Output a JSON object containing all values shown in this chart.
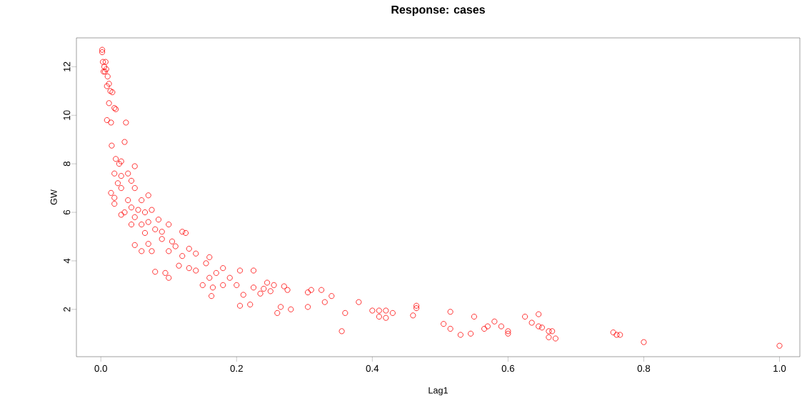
{
  "chart_data": {
    "type": "scatter",
    "title": "Response: cases",
    "xlabel": "Lag1",
    "ylabel": "GW",
    "color": "#ff0000",
    "marker": "circle",
    "xlim": [
      -0.036,
      1.03
    ],
    "ylim": [
      0.05,
      13.19
    ],
    "xticks": [
      {
        "value": 0,
        "label": "0.0"
      },
      {
        "value": 0.2,
        "label": "0.2"
      },
      {
        "value": 0.4,
        "label": "0.4"
      },
      {
        "value": 0.6,
        "label": "0.6"
      },
      {
        "value": 0.8,
        "label": "0.8"
      },
      {
        "value": 1,
        "label": "1.0"
      }
    ],
    "yticks": [
      2,
      4,
      6,
      8,
      10,
      12
    ],
    "x": [
      0.002,
      0.002,
      0.003,
      0.007,
      0.005,
      0.008,
      0.006,
      0.004,
      0.01,
      0.012,
      0.009,
      0.014,
      0.017,
      0.012,
      0.02,
      0.022,
      0.009,
      0.015,
      0.037,
      0.016,
      0.035,
      0.022,
      0.03,
      0.027,
      0.05,
      0.02,
      0.04,
      0.03,
      0.025,
      0.045,
      0.05,
      0.03,
      0.015,
      0.02,
      0.07,
      0.02,
      0.04,
      0.06,
      0.045,
      0.035,
      0.055,
      0.065,
      0.03,
      0.05,
      0.075,
      0.085,
      0.06,
      0.07,
      0.045,
      0.1,
      0.08,
      0.09,
      0.065,
      0.12,
      0.125,
      0.05,
      0.07,
      0.09,
      0.105,
      0.11,
      0.075,
      0.06,
      0.1,
      0.13,
      0.12,
      0.14,
      0.16,
      0.155,
      0.08,
      0.095,
      0.1,
      0.13,
      0.14,
      0.115,
      0.17,
      0.18,
      0.19,
      0.205,
      0.225,
      0.16,
      0.15,
      0.165,
      0.18,
      0.2,
      0.21,
      0.225,
      0.24,
      0.245,
      0.255,
      0.27,
      0.275,
      0.25,
      0.235,
      0.22,
      0.205,
      0.163,
      0.26,
      0.28,
      0.265,
      0.305,
      0.31,
      0.325,
      0.34,
      0.33,
      0.305,
      0.36,
      0.355,
      0.38,
      0.4,
      0.41,
      0.42,
      0.41,
      0.42,
      0.43,
      0.46,
      0.465,
      0.465,
      0.505,
      0.515,
      0.515,
      0.53,
      0.545,
      0.55,
      0.565,
      0.57,
      0.58,
      0.59,
      0.6,
      0.6,
      0.625,
      0.635,
      0.645,
      0.645,
      0.65,
      0.66,
      0.665,
      0.66,
      0.67,
      0.755,
      0.76,
      0.765,
      0.8,
      1.0
    ],
    "values": [
      12.7,
      12.6,
      12.2,
      12.2,
      12.0,
      11.9,
      11.8,
      11.8,
      11.6,
      11.3,
      11.2,
      11.0,
      10.95,
      10.5,
      10.3,
      10.25,
      9.8,
      9.7,
      9.7,
      8.75,
      8.9,
      8.2,
      8.1,
      8.0,
      7.9,
      7.6,
      7.6,
      7.5,
      7.2,
      7.3,
      7.0,
      7.0,
      6.8,
      6.6,
      6.7,
      6.35,
      6.5,
      6.5,
      6.2,
      6.0,
      6.1,
      6.0,
      5.9,
      5.8,
      6.1,
      5.7,
      5.5,
      5.6,
      5.5,
      5.5,
      5.3,
      5.2,
      5.15,
      5.2,
      5.15,
      4.65,
      4.7,
      4.9,
      4.8,
      4.6,
      4.4,
      4.4,
      4.4,
      4.5,
      4.2,
      4.3,
      4.15,
      3.9,
      3.55,
      3.5,
      3.3,
      3.7,
      3.6,
      3.8,
      3.5,
      3.7,
      3.3,
      3.6,
      3.6,
      3.3,
      3.0,
      2.9,
      3.0,
      3.0,
      2.6,
      2.9,
      2.85,
      3.1,
      3.0,
      2.95,
      2.8,
      2.75,
      2.65,
      2.2,
      2.15,
      2.55,
      1.85,
      2.0,
      2.1,
      2.7,
      2.8,
      2.8,
      2.55,
      2.3,
      2.1,
      1.85,
      1.1,
      2.3,
      1.95,
      1.95,
      1.95,
      1.7,
      1.65,
      1.85,
      1.75,
      2.15,
      2.05,
      1.4,
      1.2,
      1.9,
      0.95,
      1.0,
      1.7,
      1.2,
      1.3,
      1.5,
      1.3,
      1.1,
      1.0,
      1.7,
      1.45,
      1.8,
      1.3,
      1.25,
      1.1,
      1.1,
      0.85,
      0.8,
      1.05,
      0.95,
      0.95,
      0.65,
      0.5
    ]
  }
}
